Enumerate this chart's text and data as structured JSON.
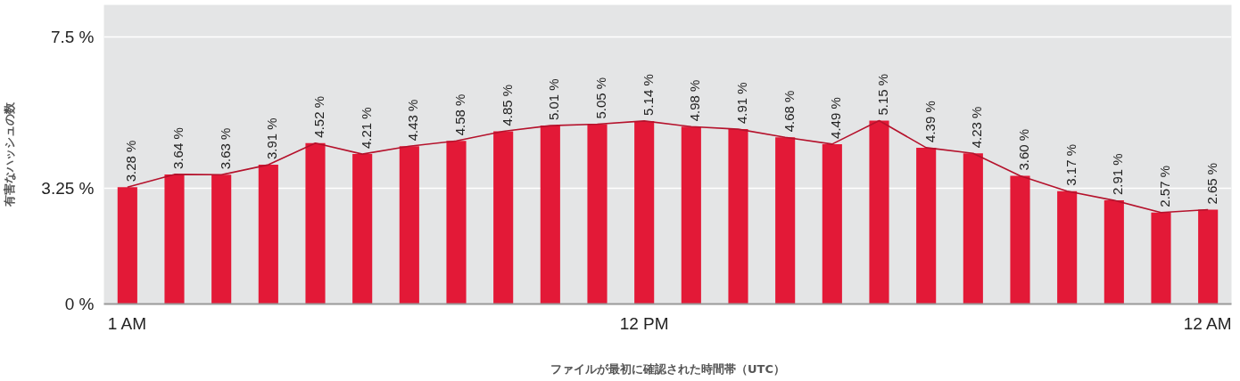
{
  "chart_data": {
    "type": "bar",
    "xlabel": "ファイルが最初に確認された時間帯（UTC）",
    "ylabel": "有害なハッシュの数",
    "categories": [
      "1 AM",
      null,
      null,
      null,
      null,
      null,
      null,
      null,
      null,
      null,
      null,
      "12 PM",
      null,
      null,
      null,
      null,
      null,
      null,
      null,
      null,
      null,
      null,
      null,
      "12 AM"
    ],
    "series": [
      {
        "color": "#e31937",
        "values": [
          3.28,
          3.64,
          3.63,
          3.91,
          4.52,
          4.21,
          4.43,
          4.58,
          4.85,
          5.01,
          5.05,
          5.14,
          4.98,
          4.91,
          4.68,
          4.49,
          5.15,
          4.39,
          4.23,
          3.6,
          3.17,
          2.91,
          2.57,
          2.65
        ],
        "value_labels": [
          "3.28 %",
          "3.64 %",
          "3.63 %",
          "3.91 %",
          "4.52 %",
          "4.21 %",
          "4.43 %",
          "4.58 %",
          "4.85 %",
          "5.01 %",
          "5.05 %",
          "5.14 %",
          "4.98 %",
          "4.91 %",
          "4.68 %",
          "4.49 %",
          "5.15 %",
          "4.39 %",
          "4.23 %",
          "3.60 %",
          "3.17 %",
          "2.91 %",
          "2.57 %",
          "2.65 %"
        ]
      },
      {
        "type": "line",
        "color": "#b5122c",
        "values": [
          3.28,
          3.64,
          3.63,
          3.91,
          4.52,
          4.21,
          4.43,
          4.58,
          4.85,
          5.01,
          5.05,
          5.14,
          4.98,
          4.91,
          4.68,
          4.49,
          5.15,
          4.39,
          4.23,
          3.6,
          3.17,
          2.91,
          2.57,
          2.65
        ]
      }
    ],
    "ylim": [
      0,
      8.4
    ],
    "yticks": [
      {
        "value": 0,
        "label": "0 %"
      },
      {
        "value": 3.25,
        "label": "3.25 %"
      },
      {
        "value": 7.5,
        "label": "7.5 %"
      }
    ],
    "grid": "y",
    "marker": "none",
    "line_style": "solid"
  }
}
